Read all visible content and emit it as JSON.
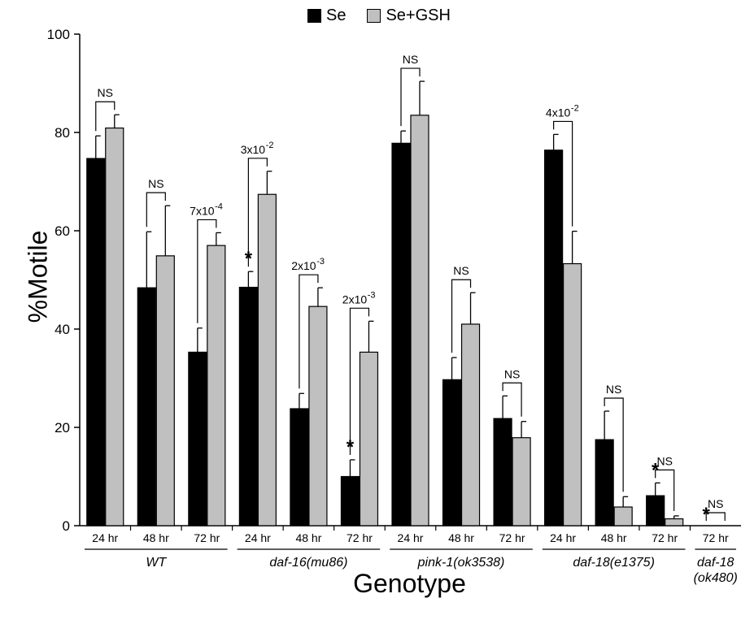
{
  "legend": {
    "se_label": "Se",
    "gsh_label": "Se+GSH",
    "se_color": "#000000",
    "gsh_color": "#c0c0c0"
  },
  "chart_data": {
    "type": "bar",
    "ylabel": "%Motile",
    "xlabel": "Genotype",
    "ylim": [
      0,
      100
    ],
    "yticks": [
      0,
      20,
      40,
      60,
      80,
      100
    ],
    "legend_position": "top-center",
    "categories": [
      "24 hr",
      "48 hr",
      "72 hr",
      "24 hr",
      "48 hr",
      "72 hr",
      "24 hr",
      "48 hr",
      "72 hr",
      "24 hr",
      "48 hr",
      "72 hr",
      "72 hr"
    ],
    "groups": [
      {
        "label": "WT",
        "lines": [
          "WT"
        ],
        "count": 3
      },
      {
        "label": "daf-16(mu86)",
        "lines": [
          "daf-16(mu86)"
        ],
        "count": 3
      },
      {
        "label": "pink-1(ok3538)",
        "lines": [
          "pink-1(ok3538)"
        ],
        "count": 3
      },
      {
        "label": "daf-18(e1375)",
        "lines": [
          "daf-18(e1375)"
        ],
        "count": 3
      },
      {
        "label": "daf-18 (ok480)",
        "lines": [
          "daf-18",
          "(ok480)"
        ],
        "count": 1
      }
    ],
    "series": [
      {
        "name": "Se",
        "values": [
          74.7,
          48.4,
          35.3,
          48.5,
          23.8,
          10.0,
          77.8,
          29.7,
          21.8,
          76.4,
          17.5,
          6.1,
          0
        ],
        "errors": [
          4.6,
          11.4,
          4.9,
          3.2,
          3.1,
          3.4,
          2.5,
          4.5,
          4.6,
          3.2,
          5.8,
          2.6,
          0
        ]
      },
      {
        "name": "Se+GSH",
        "values": [
          80.9,
          54.9,
          57.0,
          67.4,
          44.6,
          35.3,
          83.5,
          41.0,
          17.9,
          53.3,
          3.8,
          1.4,
          0
        ],
        "errors": [
          2.7,
          10.2,
          2.6,
          4.7,
          3.8,
          6.3,
          6.9,
          6.4,
          3.3,
          6.6,
          2.1,
          0.6,
          0
        ]
      }
    ],
    "annotations": [
      {
        "index": 0,
        "text": "NS"
      },
      {
        "index": 1,
        "text": "NS"
      },
      {
        "index": 2,
        "text": "7x10",
        "exp": "-4"
      },
      {
        "index": 3,
        "text": "3x10",
        "exp": "-2"
      },
      {
        "index": 4,
        "text": "2x10",
        "exp": "-3"
      },
      {
        "index": 5,
        "text": "2x10",
        "exp": "-3"
      },
      {
        "index": 6,
        "text": "NS"
      },
      {
        "index": 7,
        "text": "NS"
      },
      {
        "index": 8,
        "text": "NS"
      },
      {
        "index": 9,
        "text": "4x10",
        "exp": "-2"
      },
      {
        "index": 10,
        "text": "NS"
      },
      {
        "index": 11,
        "text": "NS"
      },
      {
        "index": 12,
        "text": "NS"
      }
    ],
    "asterisks": [
      3,
      5,
      11,
      12
    ],
    "asterisk_symbol": "*"
  }
}
